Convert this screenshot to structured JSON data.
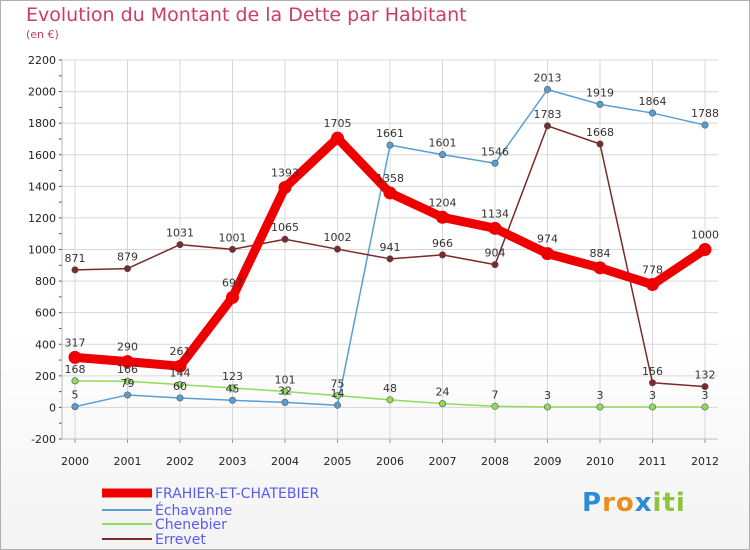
{
  "chart_data": {
    "type": "line",
    "title": "Evolution du Montant de la Dette par Habitant",
    "subtitle": "(en €)",
    "xlabel": "",
    "ylabel": "",
    "x": [
      "2000",
      "2001",
      "2002",
      "2003",
      "2004",
      "2005",
      "2006",
      "2007",
      "2008",
      "2009",
      "2010",
      "2011",
      "2012"
    ],
    "ylim": [
      -200,
      2200
    ],
    "yticks": [
      -200,
      0,
      200,
      400,
      600,
      800,
      1000,
      1200,
      1400,
      1600,
      1800,
      2000,
      2200
    ],
    "grid": true,
    "legend_placement": "bottom-left",
    "series": [
      {
        "name": "FRAHIER-ET-CHATEBIER",
        "color": "#ee0000",
        "highlight": true,
        "values": [
          317,
          290,
          261,
          697,
          1393,
          1705,
          1358,
          1204,
          1134,
          974,
          884,
          778,
          1000
        ],
        "labels": [
          "317",
          "290",
          "261",
          "697",
          "1393",
          "1705",
          "1358",
          "1204",
          "1134",
          "974",
          "884",
          "778",
          "1000"
        ]
      },
      {
        "name": "Échavanne",
        "color": "#5a9fd4",
        "highlight": false,
        "values": [
          5,
          79,
          60,
          45,
          32,
          14,
          1661,
          1601,
          1546,
          2013,
          1919,
          1864,
          1788
        ],
        "labels": [
          "5",
          "79",
          "60",
          "45",
          "32",
          "14",
          "1661",
          "1601",
          "1546",
          "2013",
          "1919",
          "1864",
          "1788"
        ]
      },
      {
        "name": "Chenebier",
        "color": "#8fdc5a",
        "highlight": false,
        "values": [
          168,
          166,
          144,
          123,
          101,
          75,
          48,
          24,
          7,
          3,
          3,
          3,
          3
        ],
        "labels": [
          "168",
          "166",
          "144",
          "123",
          "101",
          "75",
          "48",
          "24",
          "7",
          "3",
          "3",
          "3",
          "3"
        ]
      },
      {
        "name": "Errevet",
        "color": "#7a2a2a",
        "highlight": false,
        "values": [
          871,
          879,
          1031,
          1001,
          1065,
          1002,
          941,
          966,
          904,
          1783,
          1668,
          156,
          132
        ],
        "labels": [
          "871",
          "879",
          "1031",
          "1001",
          "1065",
          "1002",
          "941",
          "966",
          "904",
          "1783",
          "1668",
          "156",
          "132"
        ]
      }
    ]
  },
  "legend_text_color": "#5a5aee",
  "logo": {
    "letters": [
      "P",
      "r",
      "o",
      "x",
      "i",
      "t",
      "i"
    ],
    "colors": [
      "#2e8bd8",
      "#e88f1e",
      "#e88f1e",
      "#2e8bd8",
      "#8fc43c",
      "#8fc43c",
      "#8fc43c"
    ]
  }
}
